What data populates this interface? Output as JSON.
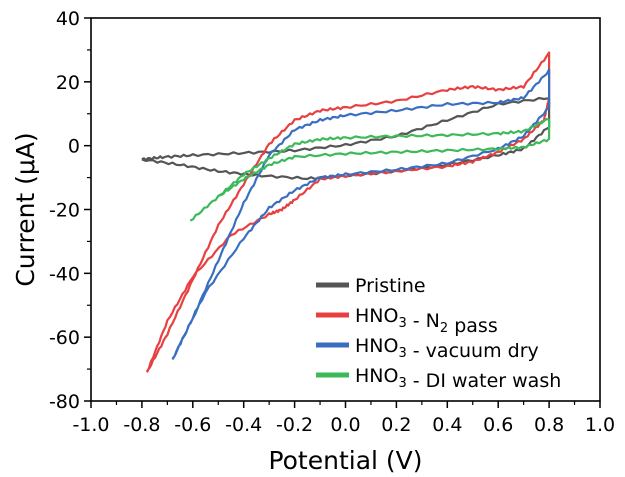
{
  "chart_data": {
    "type": "line",
    "xlabel": "Potential (V)",
    "ylabel": "Current (μA)",
    "xlim": [
      -1.0,
      1.0
    ],
    "ylim": [
      -80,
      40
    ],
    "xticks": [
      "-1.0",
      "-0.8",
      "-0.6",
      "-0.4",
      "-0.2",
      "0.0",
      "0.2",
      "0.4",
      "0.6",
      "0.8",
      "1.0"
    ],
    "yticks": [
      "40",
      "20",
      "0",
      "-20",
      "-40",
      "-60",
      "-80"
    ],
    "grid": false,
    "legend_position": "bottom-right",
    "legend": [
      {
        "parts": [
          {
            "t": "Pristine"
          }
        ]
      },
      {
        "parts": [
          {
            "t": "HNO"
          },
          {
            "t": "3",
            "sub": true
          },
          {
            "t": " - N"
          },
          {
            "t": "2",
            "sub": true
          },
          {
            "t": " pass"
          }
        ]
      },
      {
        "parts": [
          {
            "t": "HNO"
          },
          {
            "t": "3",
            "sub": true
          },
          {
            "t": " - vacuum dry"
          }
        ]
      },
      {
        "parts": [
          {
            "t": "HNO"
          },
          {
            "t": "3",
            "sub": true
          },
          {
            "t": " - DI water wash"
          }
        ]
      }
    ],
    "series": [
      {
        "name": "Pristine",
        "color": "#555555",
        "points": [
          [
            -0.8,
            -4.3
          ],
          [
            -0.72,
            -3.6
          ],
          [
            -0.6,
            -3.0
          ],
          [
            -0.4,
            -2.3
          ],
          [
            -0.2,
            -1.5
          ],
          [
            0.0,
            0.2
          ],
          [
            0.2,
            3.0
          ],
          [
            0.4,
            8.0
          ],
          [
            0.6,
            13.0
          ],
          [
            0.8,
            15.0
          ],
          [
            0.8,
            6.0
          ],
          [
            0.7,
            -1.0
          ],
          [
            0.6,
            -3.0
          ],
          [
            0.4,
            -6.0
          ],
          [
            0.2,
            -8.0
          ],
          [
            0.0,
            -9.5
          ],
          [
            -0.15,
            -10.3
          ],
          [
            -0.35,
            -9.3
          ],
          [
            -0.5,
            -8.0
          ],
          [
            -0.65,
            -6.0
          ],
          [
            -0.8,
            -4.3
          ]
        ]
      },
      {
        "name": "HNO3 - N2 pass",
        "color": "#e84040",
        "points": [
          [
            -0.78,
            -71.0
          ],
          [
            -0.7,
            -59.0
          ],
          [
            -0.6,
            -42.0
          ],
          [
            -0.5,
            -25.0
          ],
          [
            -0.4,
            -12.0
          ],
          [
            -0.3,
            0.5
          ],
          [
            -0.2,
            8.0
          ],
          [
            -0.1,
            11.0
          ],
          [
            0.0,
            12.0
          ],
          [
            0.2,
            14.0
          ],
          [
            0.4,
            17.5
          ],
          [
            0.5,
            18.5
          ],
          [
            0.6,
            17.5
          ],
          [
            0.7,
            18.5
          ],
          [
            0.8,
            29.0
          ],
          [
            0.8,
            15.0
          ],
          [
            0.78,
            8.0
          ],
          [
            0.7,
            2.0
          ],
          [
            0.6,
            -2.0
          ],
          [
            0.5,
            -5.0
          ],
          [
            0.4,
            -6.5
          ],
          [
            0.2,
            -8.0
          ],
          [
            0.0,
            -9.5
          ],
          [
            -0.1,
            -10.5
          ],
          [
            -0.2,
            -17.0
          ],
          [
            -0.25,
            -20.0
          ],
          [
            -0.3,
            -21.5
          ],
          [
            -0.45,
            -28.0
          ],
          [
            -0.6,
            -41.0
          ],
          [
            -0.7,
            -55.0
          ],
          [
            -0.78,
            -71.0
          ]
        ]
      },
      {
        "name": "HNO3 - vacuum dry",
        "color": "#3a6fc0",
        "points": [
          [
            -0.68,
            -67.0
          ],
          [
            -0.6,
            -54.0
          ],
          [
            -0.5,
            -36.0
          ],
          [
            -0.4,
            -18.0
          ],
          [
            -0.3,
            -3.0
          ],
          [
            -0.2,
            5.0
          ],
          [
            -0.1,
            8.0
          ],
          [
            0.0,
            9.5
          ],
          [
            0.2,
            11.0
          ],
          [
            0.4,
            13.0
          ],
          [
            0.6,
            13.5
          ],
          [
            0.7,
            15.0
          ],
          [
            0.8,
            23.5
          ],
          [
            0.8,
            12.0
          ],
          [
            0.7,
            3.0
          ],
          [
            0.6,
            -1.0
          ],
          [
            0.4,
            -5.5
          ],
          [
            0.2,
            -7.5
          ],
          [
            0.0,
            -9.0
          ],
          [
            -0.1,
            -10.0
          ],
          [
            -0.2,
            -14.0
          ],
          [
            -0.3,
            -19.5
          ],
          [
            -0.4,
            -29.0
          ],
          [
            -0.55,
            -46.0
          ],
          [
            -0.68,
            -67.0
          ]
        ]
      },
      {
        "name": "HNO3 - DI water wash",
        "color": "#3cba5a",
        "points": [
          [
            -0.61,
            -23.5
          ],
          [
            -0.5,
            -16.0
          ],
          [
            -0.4,
            -9.0
          ],
          [
            -0.3,
            -4.0
          ],
          [
            -0.2,
            0.5
          ],
          [
            -0.1,
            2.0
          ],
          [
            0.0,
            2.5
          ],
          [
            0.2,
            3.0
          ],
          [
            0.4,
            3.3
          ],
          [
            0.6,
            3.8
          ],
          [
            0.7,
            4.5
          ],
          [
            0.8,
            8.5
          ],
          [
            0.8,
            2.0
          ],
          [
            0.7,
            -0.5
          ],
          [
            0.6,
            -1.0
          ],
          [
            0.4,
            -1.5
          ],
          [
            0.2,
            -2.0
          ],
          [
            0.0,
            -2.5
          ],
          [
            -0.2,
            -3.5
          ],
          [
            -0.3,
            -6.0
          ],
          [
            -0.4,
            -10.5
          ],
          [
            -0.5,
            -16.0
          ],
          [
            -0.61,
            -23.5
          ]
        ]
      }
    ]
  }
}
